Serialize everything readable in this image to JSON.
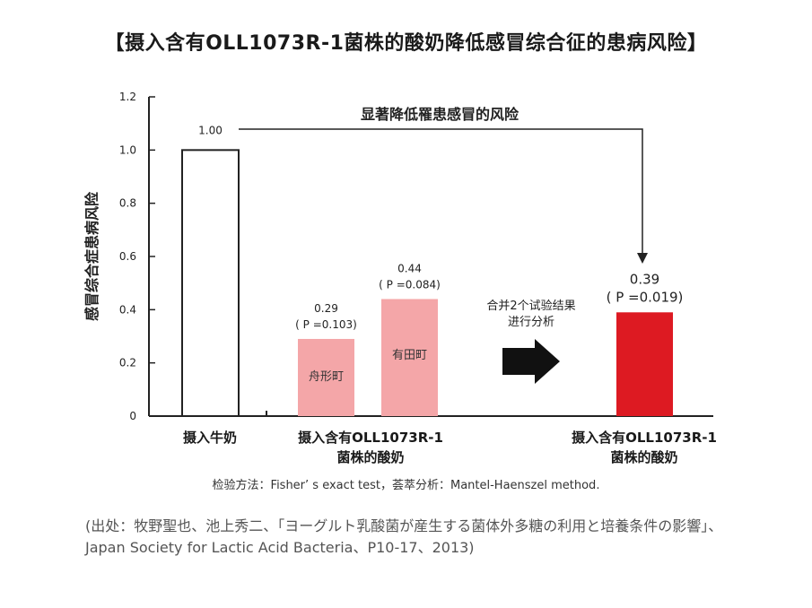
{
  "title": "【摄入含有OLL1073R-1菌株的酸奶降低感冒综合征的患病风险】",
  "method_note": "检验方法：Fisher’ s exact test，荟萃分析：Mantel-Haenszel method.",
  "source_note": "(出处：牧野聖也、池上秀二、「ヨーグルト乳酸菌が産生する菌体外多糖の利用と培養条件の影響」、Japan Society for Lactic Acid Bacteria、P10-17、2013)",
  "arrow_label": "显著降低罹患感冒的风险",
  "combine_label": [
    "合并2个试验结果",
    "进行分析"
  ],
  "colors": {
    "control": "#ffffff",
    "trial": "#f4a6a8",
    "combined": "#dd1a22",
    "axis": "#222222"
  },
  "chart_data": {
    "type": "bar",
    "ylabel": "感冒综合症患病风险",
    "ylim": [
      0,
      1.2
    ],
    "yticks": [
      "0",
      "0.2",
      "0.4",
      "0.6",
      "0.8",
      "1.0",
      "1.2"
    ],
    "ytick_values": [
      0,
      0.2,
      0.4,
      0.6,
      0.8,
      1.0,
      1.2
    ],
    "bars": [
      {
        "value": 1.0,
        "value_label": "1.00",
        "p_label": "",
        "inner_label": "",
        "color": "#ffffff"
      },
      {
        "value": 0.29,
        "value_label": "0.29",
        "p_label": "( P =0.103)",
        "inner_label": "舟形町",
        "color": "#f4a6a8"
      },
      {
        "value": 0.44,
        "value_label": "0.44",
        "p_label": "( P =0.084)",
        "inner_label": "有田町",
        "color": "#f4a6a8"
      },
      {
        "value": 0.39,
        "value_label": "0.39",
        "p_label": "( P =0.019)",
        "inner_label": "",
        "color": "#dd1a22"
      }
    ],
    "groups": [
      {
        "label": [
          "摄入牛奶"
        ]
      },
      {
        "label": [
          "摄入含有OLL1073R-1",
          "菌株的酸奶"
        ]
      },
      {
        "label": [
          "摄入含有OLL1073R-1",
          "菌株的酸奶"
        ]
      }
    ]
  }
}
